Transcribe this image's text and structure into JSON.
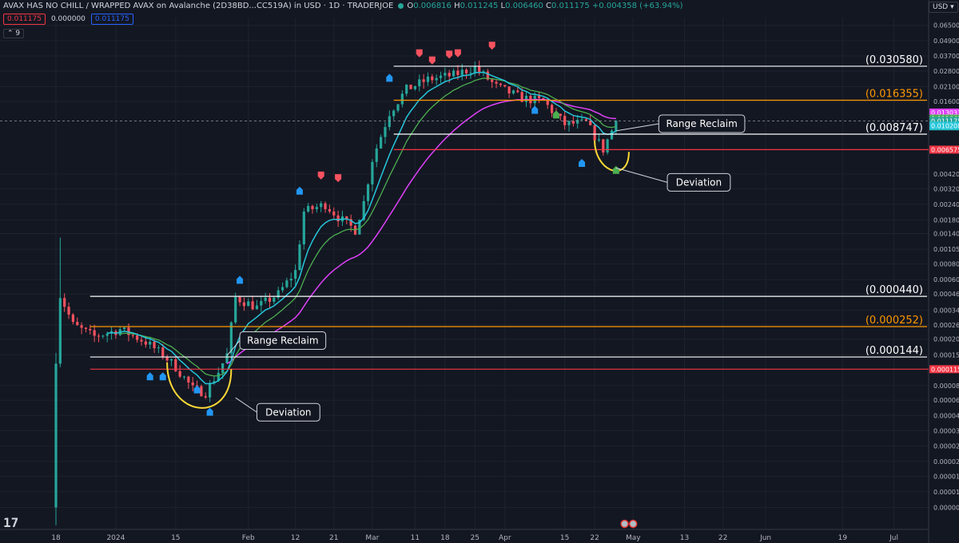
{
  "header": {
    "title": "AVAX HAS NO CHILL / WRAPPED AVAX on Avalanche (2D38BD...CC519A) in USD · 1D · TRADERJOE",
    "o_label": "O",
    "o": "0.006816",
    "h_label": "H",
    "h": "0.011245",
    "l_label": "L",
    "l": "0.006460",
    "c_label": "C",
    "c": "0.011175",
    "change": "+0.004358 (+63.94%)"
  },
  "pills": {
    "sell": "0.011175",
    "spread": "0.000000",
    "buy": "0.011175"
  },
  "indicator_toggle": "9",
  "currency": "USD",
  "colors": {
    "up": "#26a69a",
    "down": "#f7525f",
    "ema_fast": "#26c6da",
    "ema_mid": "#4caf50",
    "ema_slow": "#e040fb",
    "yellow": "#fdd835",
    "white_level": "#ffffff",
    "orange_level": "#ff9800",
    "red_level": "#f23645"
  },
  "chart_data": {
    "type": "candlestick",
    "yscale": "log",
    "ylim": [
      6e-06,
      0.075
    ],
    "xlim": [
      "2023-12-18",
      "2024-07-05"
    ],
    "x_ticks": [
      {
        "date": "2023-12-18",
        "label": "18"
      },
      {
        "date": "2024-01-01",
        "label": "2024"
      },
      {
        "date": "2024-01-15",
        "label": "15"
      },
      {
        "date": "2024-02-01",
        "label": "Feb"
      },
      {
        "date": "2024-02-12",
        "label": "12"
      },
      {
        "date": "2024-02-21",
        "label": "21"
      },
      {
        "date": "2024-03-01",
        "label": "Mar"
      },
      {
        "date": "2024-03-11",
        "label": "11"
      },
      {
        "date": "2024-03-18",
        "label": "18"
      },
      {
        "date": "2024-03-25",
        "label": "25"
      },
      {
        "date": "2024-04-01",
        "label": "Apr"
      },
      {
        "date": "2024-04-15",
        "label": "15"
      },
      {
        "date": "2024-04-22",
        "label": "22"
      },
      {
        "date": "2024-05-01",
        "label": "May"
      },
      {
        "date": "2024-05-13",
        "label": "13"
      },
      {
        "date": "2024-05-22",
        "label": "22"
      },
      {
        "date": "2024-06-01",
        "label": "Jun"
      },
      {
        "date": "2024-06-19",
        "label": "19"
      },
      {
        "date": "2024-07-01",
        "label": "Jul"
      }
    ],
    "y_ticks": [
      "0.065000",
      "0.049000",
      "0.037000",
      "0.028000",
      "0.021000",
      "0.016000",
      "0.004200",
      "0.003200",
      "0.002400",
      "0.001800",
      "0.001400",
      "0.001050",
      "0.000800",
      "0.000600",
      "0.000460",
      "0.000340",
      "0.000260",
      "0.000200",
      "0.000150",
      "0.000085",
      "0.000065",
      "0.000049",
      "0.000037",
      "0.000028",
      "0.000021",
      "0.000016",
      "0.000012",
      "0.000009"
    ],
    "price_tags": [
      {
        "value": 0.013033,
        "label": "0.013033",
        "color": "#e040fb"
      },
      {
        "value": 0.011643,
        "label": "0.011643",
        "color": "#4caf50"
      },
      {
        "value": 0.011175,
        "label": "0.011175",
        "color": "#26a69a"
      },
      {
        "value": 0.0101,
        "label": "02:45:20",
        "color": "#26a69a"
      },
      {
        "value": 0.010208,
        "label": "0.010208",
        "color": "#26c6da"
      },
      {
        "value": 0.006575,
        "label": "0.006575",
        "color": "#f23645"
      },
      {
        "value": 0.000115,
        "label": "0.000115",
        "color": "#f23645"
      }
    ],
    "levels": [
      {
        "value": 0.03058,
        "label": "(0.030580)",
        "color": "#ffffff",
        "start": "2024-03-06"
      },
      {
        "value": 0.016355,
        "label": "(0.016355)",
        "color": "#ff9800",
        "start": "2024-03-06"
      },
      {
        "value": 0.008747,
        "label": "(0.008747)",
        "color": "#ffffff",
        "start": "2024-03-06"
      },
      {
        "value": 0.006575,
        "label": "",
        "color": "#f23645",
        "start": "2024-03-06"
      },
      {
        "value": 0.00044,
        "label": "(0.000440)",
        "color": "#ffffff",
        "start": "2023-12-26"
      },
      {
        "value": 0.000252,
        "label": "(0.000252)",
        "color": "#ff9800",
        "start": "2023-12-26"
      },
      {
        "value": 0.000144,
        "label": "(0.000144)",
        "color": "#ffffff",
        "start": "2023-12-26"
      },
      {
        "value": 0.000115,
        "label": "",
        "color": "#f23645",
        "start": "2023-12-26"
      }
    ],
    "annotations": [
      {
        "text": "Range Reclaim",
        "date": "2024-01-30",
        "value": 0.000195,
        "target_date": "2024-01-27",
        "target_value": 0.000148
      },
      {
        "text": "Deviation",
        "date": "2024-02-03",
        "value": 5.2e-05,
        "target_date": "2024-01-29",
        "target_value": 6.8e-05
      },
      {
        "text": "Range Reclaim",
        "date": "2024-05-07",
        "value": 0.0106,
        "target_date": "2024-04-27",
        "target_value": 0.0093
      },
      {
        "text": "Deviation",
        "date": "2024-05-09",
        "value": 0.0036,
        "target_date": "2024-04-27",
        "target_value": 0.0047
      }
    ]
  }
}
